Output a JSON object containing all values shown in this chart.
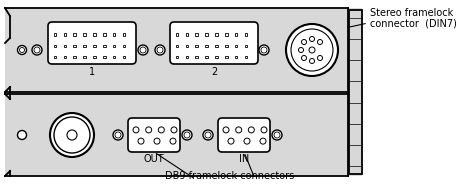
{
  "bg_color": "#ffffff",
  "card_color": "#d8d8d8",
  "line_color": "#000000",
  "text_color": "#000000",
  "title_stereo_1": "Stereo framelock",
  "title_stereo_2": "connector  (DIN7)",
  "title_db9": "DB9 framelock connectors",
  "label_1": "1",
  "label_2": "2",
  "label_out": "OUT",
  "label_in": "IN",
  "figsize": [
    4.66,
    1.86
  ],
  "dpi": 100
}
